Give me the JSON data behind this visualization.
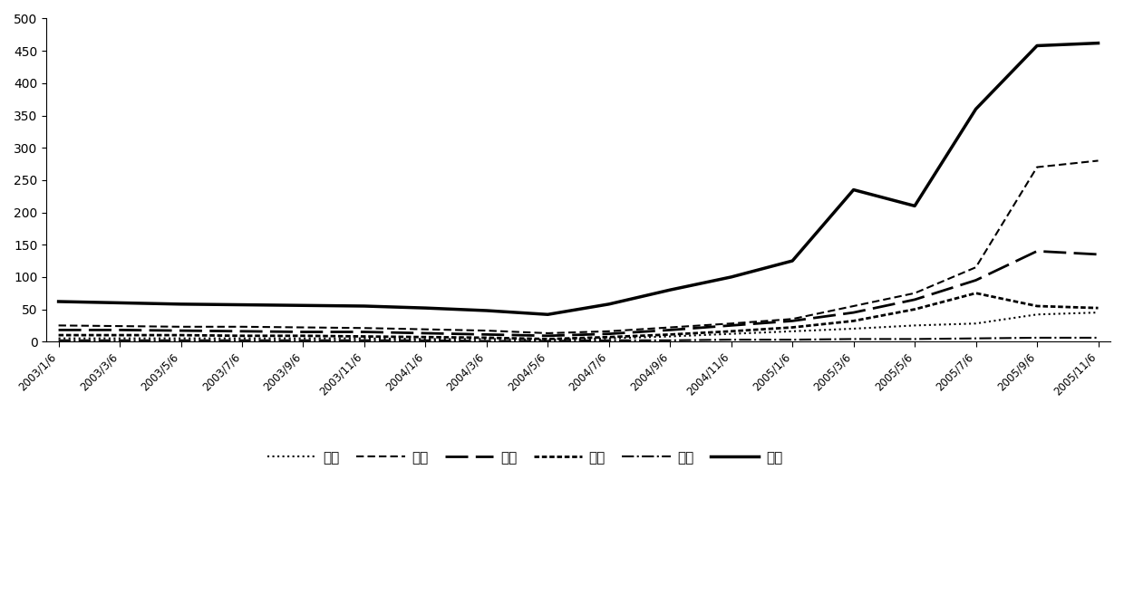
{
  "x_labels": [
    "2003/1/6",
    "2003/3/6",
    "2003/5/6",
    "2003/7/6",
    "2003/9/6",
    "2003/11/6",
    "2004/1/6",
    "2004/3/6",
    "2004/5/6",
    "2004/7/6",
    "2004/9/6",
    "2004/11/6",
    "2005/1/6",
    "2005/3/6",
    "2005/5/6",
    "2005/7/6",
    "2005/9/6",
    "2005/11/6"
  ],
  "hydrogen": [
    5,
    5,
    5,
    5,
    5,
    5,
    4,
    4,
    3,
    5,
    8,
    12,
    16,
    20,
    25,
    28,
    42,
    45
  ],
  "methane": [
    25,
    24,
    23,
    23,
    22,
    21,
    19,
    17,
    13,
    16,
    22,
    28,
    35,
    55,
    75,
    115,
    270,
    280
  ],
  "ethane": [
    18,
    18,
    17,
    16,
    15,
    15,
    13,
    11,
    9,
    12,
    18,
    25,
    32,
    45,
    65,
    95,
    140,
    135
  ],
  "ethylene": [
    10,
    10,
    10,
    9,
    9,
    8,
    7,
    6,
    4,
    7,
    11,
    16,
    22,
    32,
    50,
    75,
    55,
    52
  ],
  "acetylene": [
    2,
    2,
    2,
    2,
    2,
    2,
    2,
    1,
    1,
    2,
    2,
    3,
    3,
    4,
    4,
    5,
    6,
    6
  ],
  "total": [
    62,
    60,
    58,
    57,
    56,
    55,
    52,
    48,
    42,
    58,
    80,
    100,
    125,
    235,
    210,
    360,
    458,
    462
  ],
  "legend_labels": [
    "氢气",
    "甲烷",
    "乙烷",
    "乙烯",
    "乙倦",
    "总烷"
  ],
  "ylim": [
    0,
    500
  ],
  "yticks": [
    0,
    50,
    100,
    150,
    200,
    250,
    300,
    350,
    400,
    450,
    500
  ],
  "background_color": "#ffffff",
  "line_styles": [
    {
      "linestyle": ":",
      "linewidth": 1.5
    },
    {
      "linestyle": "--",
      "linewidth": 1.5,
      "dashes": [
        4,
        2
      ]
    },
    {
      "linestyle": "--",
      "linewidth": 2.0,
      "dashes": [
        9,
        3
      ]
    },
    {
      "linestyle": ":",
      "linewidth": 2.0,
      "dashes": [
        2,
        1
      ]
    },
    {
      "linestyle": "-.",
      "linewidth": 1.5
    },
    {
      "linestyle": "-",
      "linewidth": 2.5
    }
  ]
}
